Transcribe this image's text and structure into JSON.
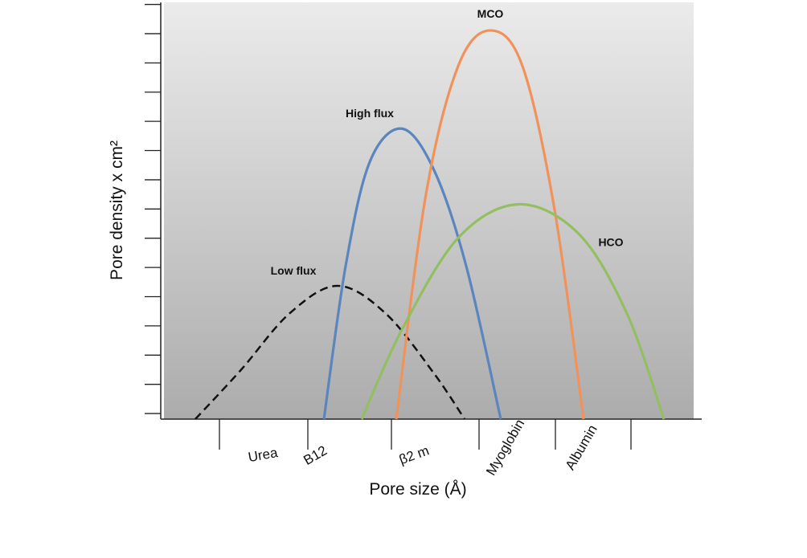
{
  "chart_data": {
    "type": "line",
    "x_label": "Pore size (Å)",
    "y_label": "Pore density x cm²",
    "categories": [
      "Urea",
      "B12",
      "β2 m",
      "Myoglobin",
      "Albumin"
    ],
    "xlim": [
      0,
      6.73
    ],
    "xticks": [
      0.73,
      1.83,
      2.87,
      3.96,
      4.91,
      5.85
    ],
    "ylim": [
      0.81,
      15.07
    ],
    "yticks": [
      1,
      2,
      3,
      4,
      5,
      6,
      7,
      8,
      9,
      10,
      11,
      12,
      13,
      14,
      15
    ],
    "series": [
      {
        "name": "Low flux",
        "color": "#111111",
        "dashed": true,
        "x": [
          0.43,
          1.0,
          1.6,
          2.2,
          2.8,
          3.4,
          3.78
        ],
        "values": [
          0.81,
          2.5,
          4.42,
          5.37,
          4.42,
          2.37,
          0.81
        ]
      },
      {
        "name": "High flux",
        "color": "#5b86bd",
        "x": [
          2.03,
          2.3,
          2.6,
          3.0,
          3.4,
          3.8,
          4.23
        ],
        "values": [
          0.81,
          6.05,
          9.61,
          10.75,
          9.33,
          6.05,
          0.81
        ]
      },
      {
        "name": "MCO",
        "color": "#f0925a",
        "x": [
          2.93,
          3.3,
          3.7,
          4.1,
          4.5,
          4.9,
          5.26
        ],
        "values": [
          0.81,
          8.51,
          12.89,
          14.11,
          12.89,
          7.97,
          0.81
        ]
      },
      {
        "name": "HCO",
        "color": "#92bf5f",
        "x": [
          2.5,
          3.0,
          3.7,
          4.45,
          5.2,
          5.8,
          6.26
        ],
        "values": [
          0.81,
          3.87,
          7.01,
          8.16,
          7.15,
          4.42,
          0.81
        ]
      }
    ]
  }
}
